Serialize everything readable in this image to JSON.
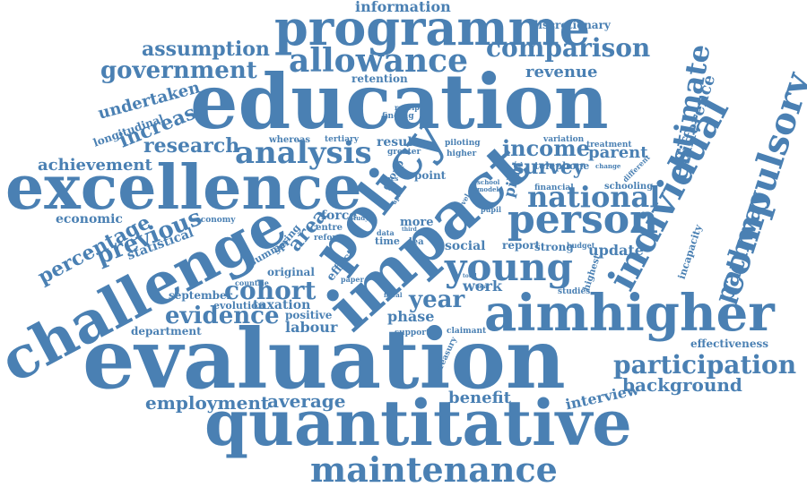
{
  "cloud": {
    "color": "#4a80b3",
    "words": {
      "evaluation": "evaluation",
      "education": "education",
      "quantitative": "quantitative",
      "excellence": "excellence",
      "challenge": "challenge",
      "impact": "impact",
      "aimhigher": "aimhigher",
      "policy": "policy",
      "programme": "programme",
      "person": "person",
      "young": "young",
      "individual": "individual",
      "compulsory": "compulsory",
      "maintenance": "maintenance",
      "allowance": "allowance",
      "analysis": "analysis",
      "national": "national",
      "estimate": "estimate",
      "participation": "participation",
      "comparison": "comparison",
      "pathway": "pathway",
      "cohort": "cohort",
      "evidence": "evidence",
      "government": "government",
      "previous": "previous",
      "assumption": "assumption",
      "income": "income",
      "survey": "survey",
      "percentage": "percentage",
      "research": "research",
      "employment": "employment",
      "year": "year",
      "average": "average",
      "achievement": "achievement",
      "background": "background",
      "difference": "difference",
      "increase": "increase",
      "area": "area",
      "undertaken": "undertaken",
      "benefit": "benefit",
      "revenue": "revenue",
      "parent": "parent",
      "interview": "interview",
      "update": "update",
      "information": "information",
      "discretionary": "discretionary",
      "retention": "retention",
      "longitudinal": "longitudinal",
      "economic": "economic",
      "statistical": "statistical",
      "phase": "phase",
      "work": "work",
      "labour": "labour",
      "effectiveness": "effectiveness",
      "pilot": "pilot",
      "social": "social",
      "taxation": "taxation",
      "department": "department",
      "september": "september",
      "evolution": "evolution",
      "positive": "positive",
      "original": "original",
      "summer": "summer",
      "spring": "spring",
      "force": "force",
      "more": "more",
      "effect": "effect",
      "report": "report",
      "strong": "strong",
      "incapacity": "incapacity",
      "highest": "highest",
      "studies": "studies",
      "telephone": "telephone",
      "schooling": "schooling",
      "financial": "financial",
      "treatment": "treatment",
      "variation": "variation",
      "piloting": "piloting",
      "higher": "higher",
      "result": "result",
      "whereas": "whereas",
      "tertiary": "tertiary",
      "greater": "greater",
      "group": "group",
      "point": "point",
      "finding": "finding",
      "receipt": "receipt",
      "economy": "economy",
      "centre": "centre",
      "reform": "reform",
      "time": "time",
      "lea": "lea",
      "data": "data",
      "paper": "paper",
      "claimant": "claimant",
      "support": "support",
      "treasury": "treasury",
      "school": "school",
      "model": "model",
      "pupil": "pupil",
      "budget": "budget",
      "change": "change",
      "different": "different",
      "countrie": "countrie",
      "study": "study",
      "fiscal": "fiscal",
      "total": "total",
      "level": "level",
      "taxes": "taxes",
      "aim": "aim",
      "april": "april",
      "third": "third",
      "total2": "total"
    }
  }
}
